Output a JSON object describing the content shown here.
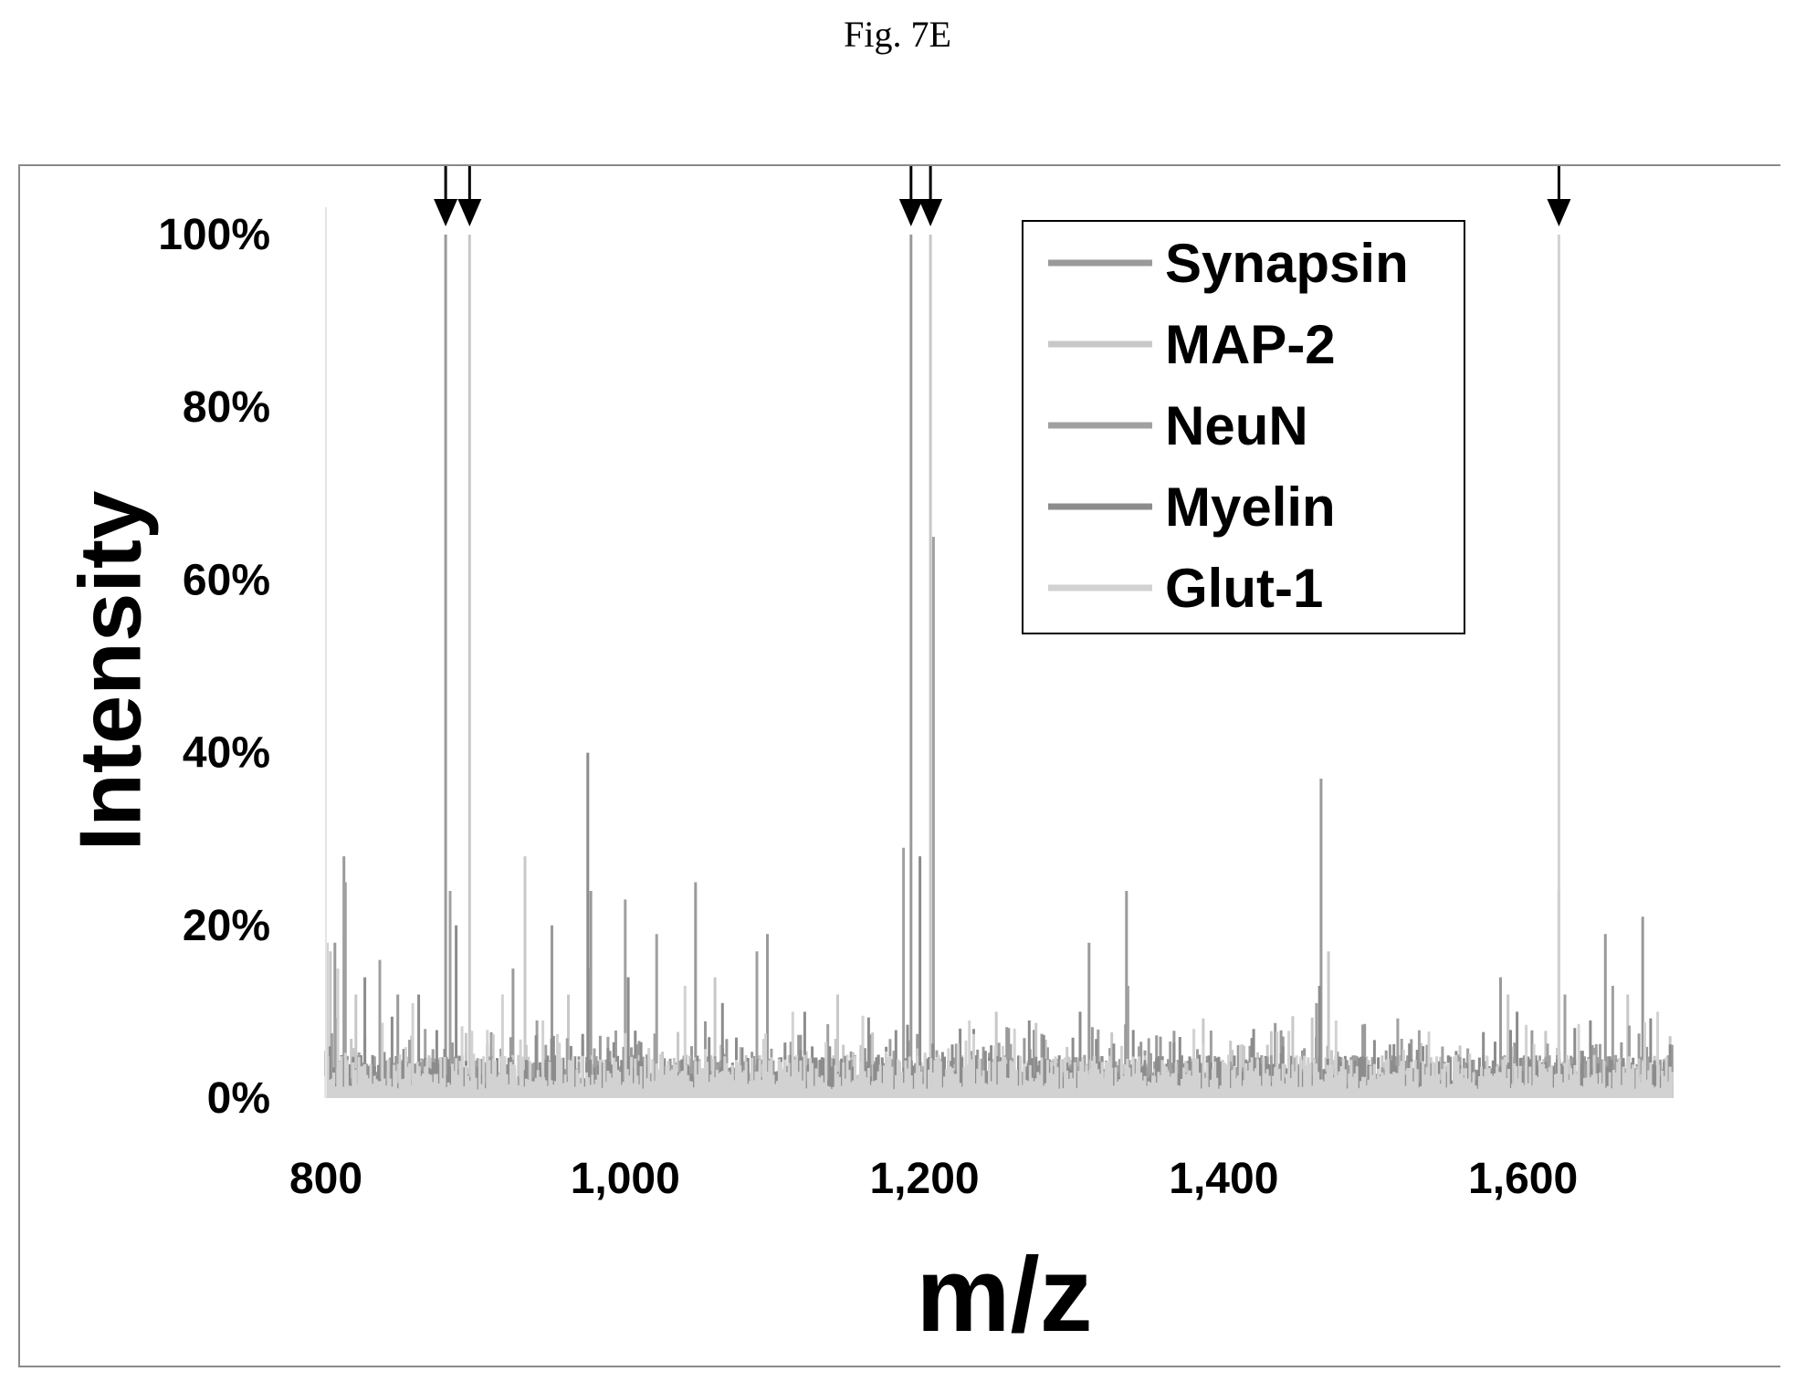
{
  "figure": {
    "caption": "Fig. 7E"
  },
  "chart_data": {
    "type": "line",
    "title": "",
    "xlabel": "m/z",
    "ylabel": "Intensity",
    "xlim": [
      800,
      1700
    ],
    "ylim": [
      0,
      100
    ],
    "x_ticks": [
      800,
      1000,
      1200,
      1400,
      1600
    ],
    "x_tick_labels": [
      "800",
      "1,000",
      "1,200",
      "1,400",
      "1,600"
    ],
    "y_ticks": [
      0,
      20,
      40,
      60,
      80,
      100
    ],
    "y_tick_labels": [
      "0%",
      "20%",
      "40%",
      "60%",
      "80%",
      "100%"
    ],
    "grid": false,
    "legend_position": "top-right",
    "arrow_markers_mz": [
      880,
      896,
      1191,
      1204,
      1624
    ],
    "series": [
      {
        "name": "Synapsin",
        "color": "#9a9a9a",
        "peaks": [
          [
            806,
            18
          ],
          [
            812,
            28
          ],
          [
            848,
            12
          ],
          [
            880,
            100
          ],
          [
            925,
            15
          ],
          [
            951,
            20
          ],
          [
            977,
            24
          ],
          [
            1047,
            25
          ],
          [
            1095,
            19
          ],
          [
            1191,
            100
          ],
          [
            1310,
            18
          ],
          [
            1335,
            24
          ],
          [
            1465,
            37
          ],
          [
            1585,
            14
          ],
          [
            1624,
            24
          ],
          [
            1655,
            19
          ],
          [
            1680,
            21
          ]
        ]
      },
      {
        "name": "MAP-2",
        "color": "#c8c8c8",
        "peaks": [
          [
            803,
            17
          ],
          [
            820,
            12
          ],
          [
            896,
            100
          ],
          [
            933,
            28
          ],
          [
            962,
            12
          ],
          [
            1060,
            14
          ],
          [
            1142,
            12
          ],
          [
            1204,
            100
          ],
          [
            1248,
            10
          ],
          [
            1470,
            17
          ],
          [
            1590,
            12
          ],
          [
            1670,
            12
          ]
        ]
      },
      {
        "name": "NeuN",
        "color": "#a0a0a0",
        "peaks": [
          [
            813,
            25
          ],
          [
            836,
            16
          ],
          [
            883,
            24
          ],
          [
            941,
            9
          ],
          [
            976,
            15
          ],
          [
            1000,
            23
          ],
          [
            1021,
            19
          ],
          [
            1088,
            17
          ],
          [
            1186,
            29
          ],
          [
            1206,
            65
          ],
          [
            1336,
            13
          ],
          [
            1462,
            11
          ],
          [
            1628,
            12
          ],
          [
            1660,
            13
          ]
        ]
      },
      {
        "name": "Myelin",
        "color": "#8c8c8c",
        "peaks": [
          [
            826,
            14
          ],
          [
            862,
            12
          ],
          [
            887,
            20
          ],
          [
            975,
            40
          ],
          [
            1002,
            14
          ],
          [
            1065,
            11
          ],
          [
            1120,
            10
          ],
          [
            1197,
            28
          ],
          [
            1270,
            9
          ],
          [
            1304,
            10
          ],
          [
            1420,
            8
          ],
          [
            1464,
            13
          ],
          [
            1596,
            10
          ],
          [
            1645,
            9
          ]
        ]
      },
      {
        "name": "Glut-1",
        "color": "#d2d2d2",
        "peaks": [
          [
            801,
            18
          ],
          [
            808,
            15
          ],
          [
            858,
            11
          ],
          [
            918,
            12
          ],
          [
            945,
            9
          ],
          [
            1040,
            13
          ],
          [
            1112,
            10
          ],
          [
            1230,
            9
          ],
          [
            1380,
            8
          ],
          [
            1475,
            9
          ],
          [
            1624,
            100
          ],
          [
            1690,
            10
          ]
        ]
      }
    ]
  }
}
